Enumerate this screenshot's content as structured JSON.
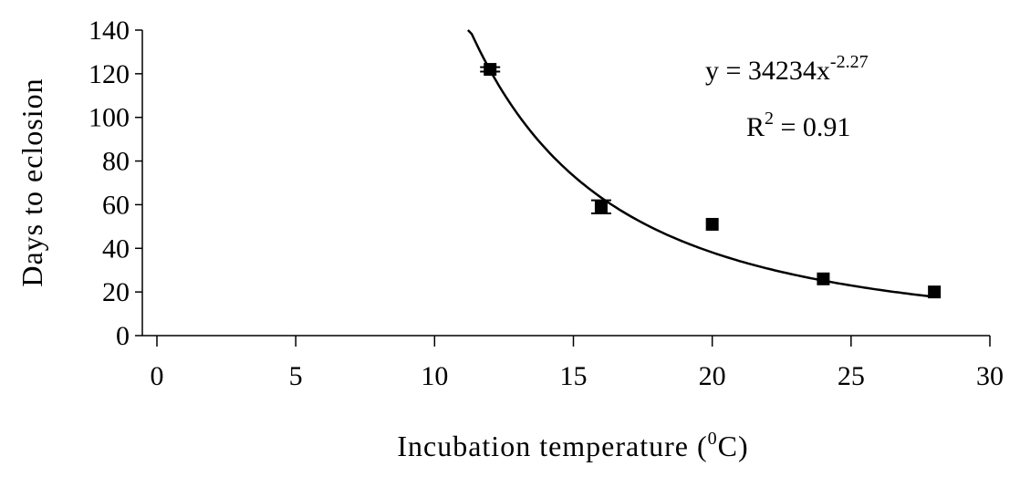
{
  "chart_data": {
    "type": "scatter",
    "xlabel_main": "Incubation temperature (",
    "xlabel_sup": "0",
    "xlabel_tail": "C)",
    "ylabel": "Days to eclosion",
    "xlim": [
      0,
      30
    ],
    "ylim": [
      0,
      140
    ],
    "xticks": [
      0,
      5,
      10,
      15,
      20,
      25,
      30
    ],
    "yticks": [
      0,
      20,
      40,
      60,
      80,
      100,
      120,
      140
    ],
    "grid": false,
    "points": [
      {
        "x": 12,
        "y": 122,
        "err": 1
      },
      {
        "x": 16,
        "y": 59,
        "err": 3
      },
      {
        "x": 20,
        "y": 51,
        "err": 0
      },
      {
        "x": 24,
        "y": 26,
        "err": 0
      },
      {
        "x": 28,
        "y": 20,
        "err": 0
      }
    ],
    "trendline": {
      "type": "power",
      "coefficient": 34234,
      "exponent": -2.27,
      "x_range": [
        11.2,
        28
      ]
    },
    "equation": {
      "main": "y = 34234x",
      "sup": "-2.27"
    },
    "r_squared": {
      "main": "R",
      "sup": "2",
      "tail": " = 0.91"
    }
  }
}
